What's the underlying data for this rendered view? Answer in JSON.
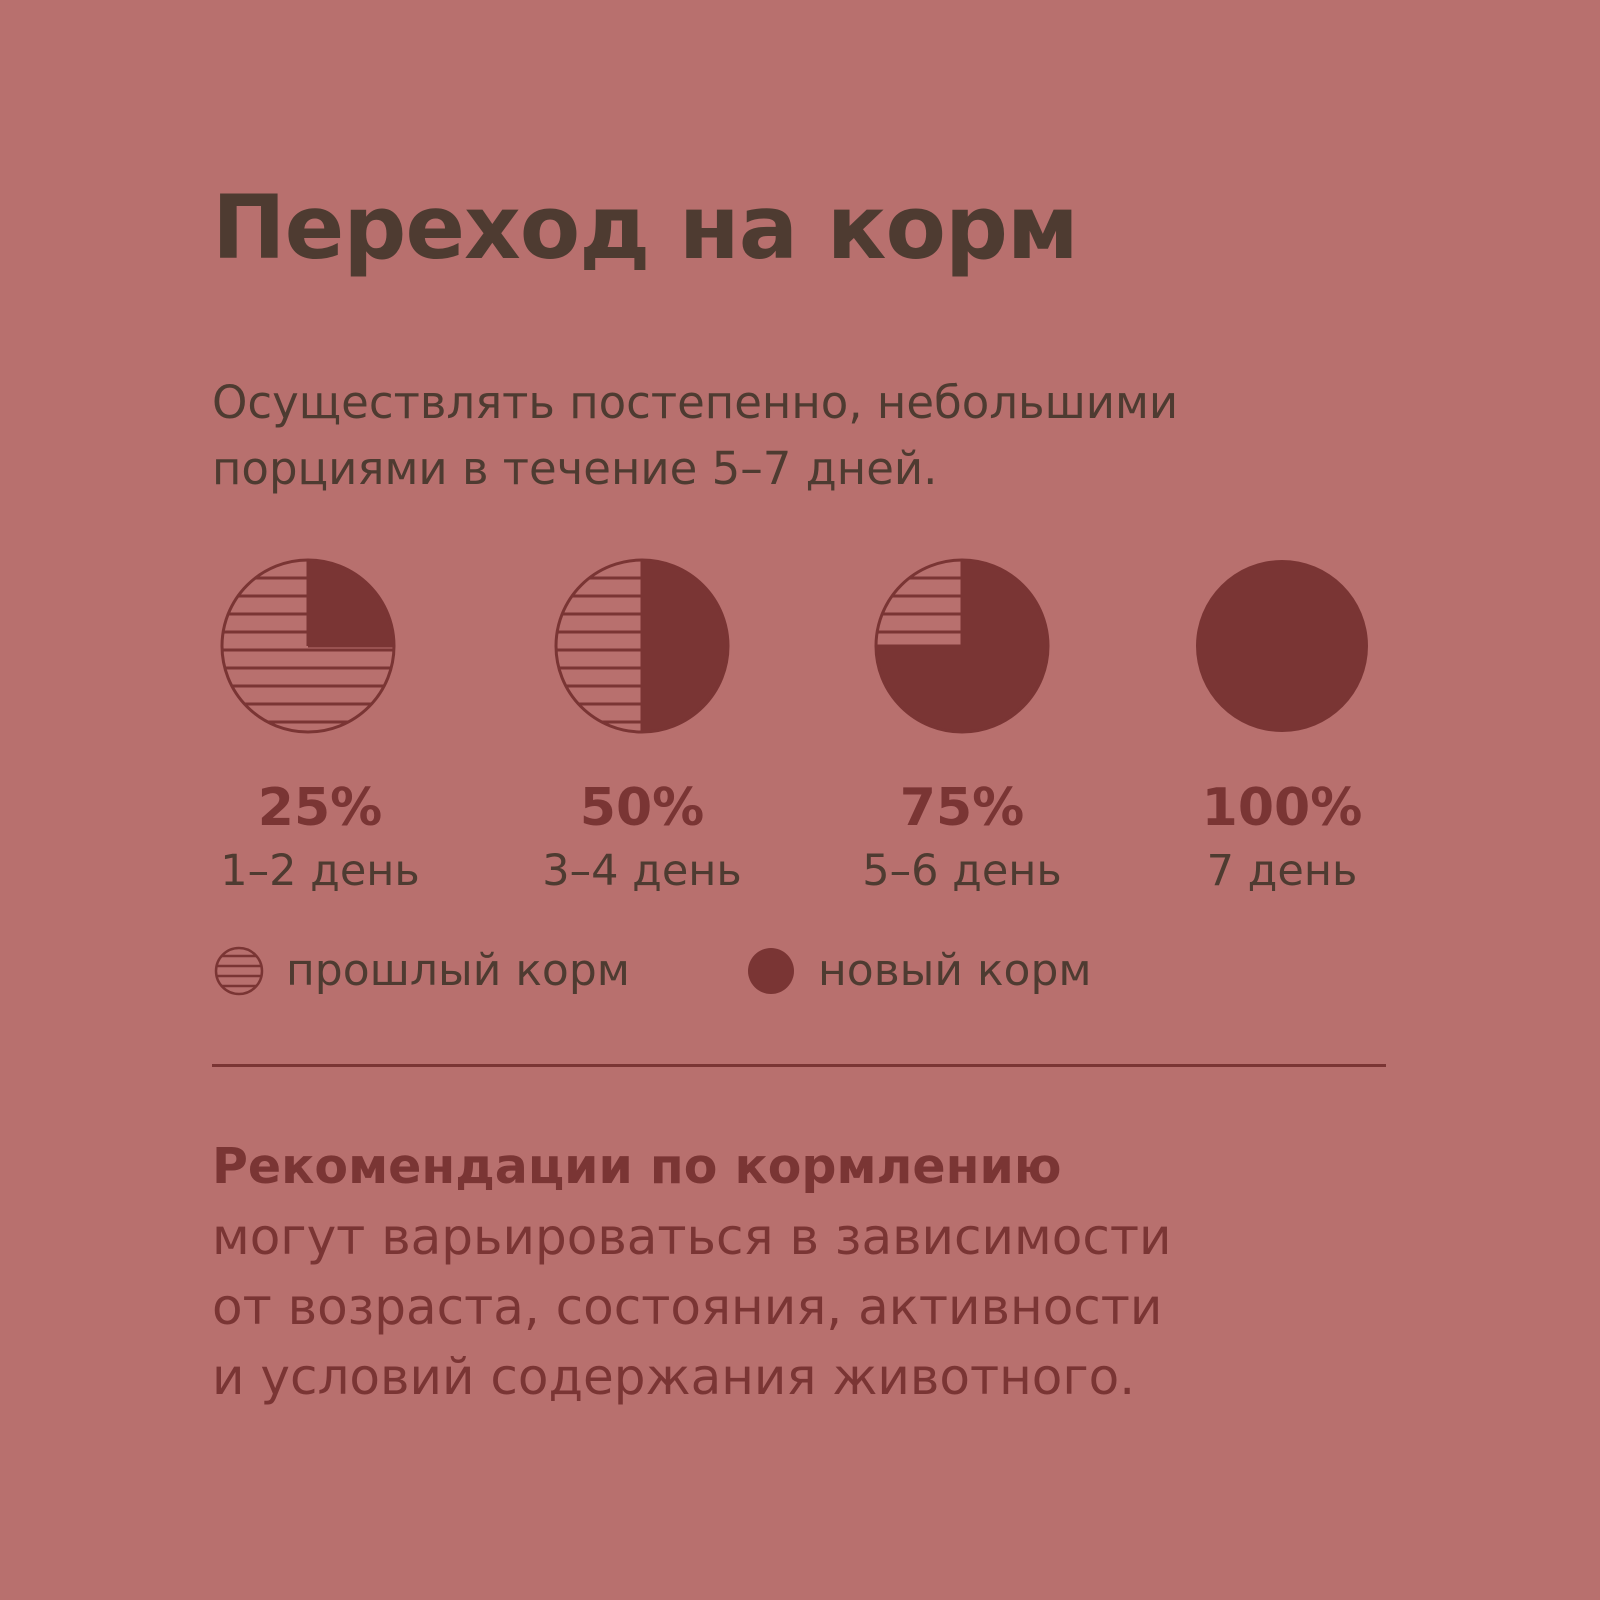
{
  "title": "Переход на корм",
  "subtitle_lines": [
    "Осуществлять постепенно, небольшими",
    "порциями в течение 5–7 дней."
  ],
  "colors": {
    "background": "#b8706e",
    "new_food": "#7a3534",
    "text_dark": "#4e3b31"
  },
  "chart_data": {
    "type": "pie",
    "series": [
      {
        "name": "прошлый корм",
        "pattern": "horizontal-stripes"
      },
      {
        "name": "новый корм",
        "pattern": "solid"
      }
    ],
    "stages": [
      {
        "label": "25%",
        "days": "1–2 день",
        "new_fraction": 0.25
      },
      {
        "label": "50%",
        "days": "3–4 день",
        "new_fraction": 0.5
      },
      {
        "label": "75%",
        "days": "5–6 день",
        "new_fraction": 0.75
      },
      {
        "label": "100%",
        "days": "7 день",
        "new_fraction": 1.0
      }
    ]
  },
  "legend": {
    "old": "прошлый корм",
    "new": "новый корм"
  },
  "recommendation": {
    "title": "Рекомендации по кормлению",
    "lines": [
      "могут варьироваться в зависимости",
      "от возраста, состояния, активности",
      "и условий содержания животного."
    ]
  }
}
